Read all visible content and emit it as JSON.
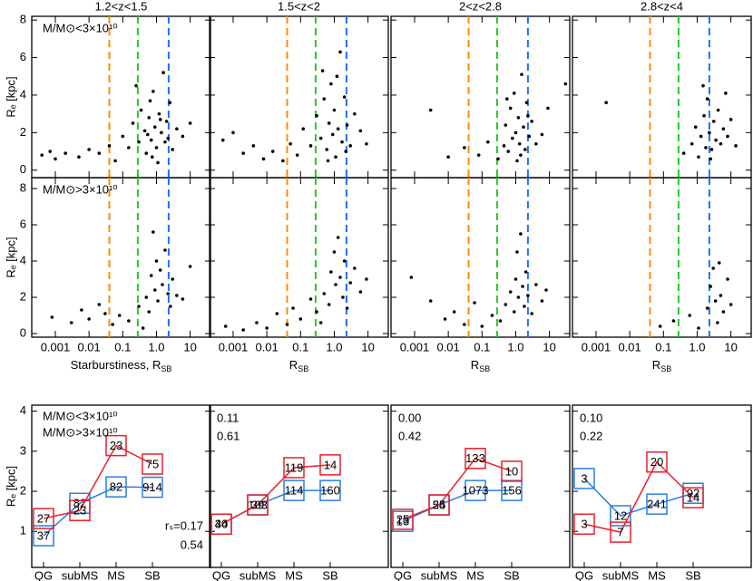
{
  "chart_data": [
    {
      "type": "scatter",
      "title": "1.2<z<1.5",
      "label": "M/M⊙<3×10¹⁰",
      "ylabel": "Rₑ [kpc]",
      "log_x": true,
      "xlim": [
        0.0002,
        40
      ],
      "ylim": [
        -0.4,
        8.2
      ],
      "xticks": [
        0.001,
        0.01,
        0.1,
        1,
        10
      ],
      "yticks": [
        0,
        2,
        4,
        6,
        8
      ],
      "color": "#000000",
      "vlines": [
        {
          "value": 0.04,
          "color": "#ff8c00"
        },
        {
          "value": 0.28,
          "color": "#22cc22"
        },
        {
          "value": 2.3,
          "color": "#1f6fff"
        }
      ],
      "points": [
        [
          0.0004,
          0.8
        ],
        [
          0.0007,
          1.0
        ],
        [
          0.001,
          0.6
        ],
        [
          0.002,
          0.9
        ],
        [
          0.005,
          0.7
        ],
        [
          0.01,
          1.1
        ],
        [
          0.02,
          0.9
        ],
        [
          0.04,
          1.3
        ],
        [
          0.06,
          0.5
        ],
        [
          0.1,
          1.8
        ],
        [
          0.15,
          1.2
        ],
        [
          0.2,
          2.5
        ],
        [
          0.3,
          1.5
        ],
        [
          0.35,
          3.2
        ],
        [
          0.45,
          2.1
        ],
        [
          0.5,
          0.9
        ],
        [
          0.6,
          2.8
        ],
        [
          0.7,
          1.6
        ],
        [
          0.8,
          4.2
        ],
        [
          0.9,
          2.3
        ],
        [
          1.0,
          1.2
        ],
        [
          1.2,
          3.0
        ],
        [
          1.4,
          2.0
        ],
        [
          1.6,
          5.2
        ],
        [
          1.8,
          1.5
        ],
        [
          2.0,
          2.6
        ],
        [
          2.5,
          3.6
        ],
        [
          3,
          1.1
        ],
        [
          4,
          2.2
        ],
        [
          6,
          1.8
        ],
        [
          10,
          2.5
        ],
        [
          0.25,
          4.5
        ],
        [
          1.1,
          0.4
        ],
        [
          0.55,
          1.9
        ],
        [
          0.75,
          0.7
        ],
        [
          1.3,
          2.7
        ],
        [
          0.65,
          3.7
        ],
        [
          2.2,
          1.7
        ]
      ]
    },
    {
      "type": "scatter",
      "title": "1.5<z<2",
      "log_x": true,
      "xlim": [
        0.0002,
        40
      ],
      "ylim": [
        -0.4,
        8.2
      ],
      "xticks": [
        0.001,
        0.01,
        0.1,
        1,
        10
      ],
      "yticks": [
        0,
        2,
        4,
        6,
        8
      ],
      "color": "#000000",
      "vlines": [
        {
          "value": 0.04,
          "color": "#ff8c00"
        },
        {
          "value": 0.28,
          "color": "#22cc22"
        },
        {
          "value": 2.3,
          "color": "#1f6fff"
        }
      ],
      "points": [
        [
          0.0005,
          1.6
        ],
        [
          0.001,
          2.0
        ],
        [
          0.002,
          0.9
        ],
        [
          0.004,
          1.3
        ],
        [
          0.008,
          0.6
        ],
        [
          0.015,
          1.0
        ],
        [
          0.03,
          0.5
        ],
        [
          0.05,
          1.4
        ],
        [
          0.08,
          0.8
        ],
        [
          0.12,
          2.2
        ],
        [
          0.2,
          1.3
        ],
        [
          0.3,
          2.9
        ],
        [
          0.4,
          1.7
        ],
        [
          0.5,
          3.8
        ],
        [
          0.6,
          1.1
        ],
        [
          0.7,
          2.5
        ],
        [
          0.8,
          4.6
        ],
        [
          0.9,
          1.9
        ],
        [
          1.0,
          3.2
        ],
        [
          1.1,
          0.7
        ],
        [
          1.3,
          2.2
        ],
        [
          1.5,
          6.3
        ],
        [
          1.7,
          1.5
        ],
        [
          2.0,
          3.9
        ],
        [
          2.4,
          2.4
        ],
        [
          3,
          1.3
        ],
        [
          4,
          3.0
        ],
        [
          6,
          2.1
        ],
        [
          9,
          1.4
        ],
        [
          0.45,
          5.3
        ],
        [
          1.2,
          5.0
        ],
        [
          0.65,
          0.5
        ],
        [
          2.2,
          1.0
        ]
      ]
    },
    {
      "type": "scatter",
      "title": "2<z<2.8",
      "log_x": true,
      "xlim": [
        0.0002,
        40
      ],
      "ylim": [
        -0.4,
        8.2
      ],
      "xticks": [
        0.001,
        0.01,
        0.1,
        1,
        10
      ],
      "yticks": [
        0,
        2,
        4,
        6,
        8
      ],
      "color": "#000000",
      "vlines": [
        {
          "value": 0.04,
          "color": "#ff8c00"
        },
        {
          "value": 0.28,
          "color": "#22cc22"
        },
        {
          "value": 2.3,
          "color": "#1f6fff"
        }
      ],
      "points": [
        [
          0.003,
          3.2
        ],
        [
          0.01,
          0.7
        ],
        [
          0.03,
          1.2
        ],
        [
          0.08,
          0.8
        ],
        [
          0.15,
          1.5
        ],
        [
          0.3,
          0.6
        ],
        [
          0.45,
          1.3
        ],
        [
          0.5,
          2.4
        ],
        [
          0.6,
          1.0
        ],
        [
          0.7,
          3.3
        ],
        [
          0.8,
          1.7
        ],
        [
          0.9,
          4.1
        ],
        [
          1.0,
          2.0
        ],
        [
          1.1,
          0.5
        ],
        [
          1.2,
          2.8
        ],
        [
          1.3,
          1.4
        ],
        [
          1.5,
          5.1
        ],
        [
          1.7,
          2.3
        ],
        [
          1.9,
          1.1
        ],
        [
          2.1,
          3.6
        ],
        [
          2.5,
          1.8
        ],
        [
          3,
          2.6
        ],
        [
          4,
          1.4
        ],
        [
          6,
          1.9
        ],
        [
          9,
          3.3
        ],
        [
          0.55,
          3.8
        ],
        [
          1.4,
          0.8
        ],
        [
          2.3,
          2.9
        ],
        [
          30,
          4.6
        ]
      ]
    },
    {
      "type": "scatter",
      "title": "2.8<z<4",
      "log_x": true,
      "xlim": [
        0.0002,
        40
      ],
      "ylim": [
        -0.4,
        8.2
      ],
      "xticks": [
        0.001,
        0.01,
        0.1,
        1,
        10
      ],
      "yticks": [
        0,
        2,
        4,
        6,
        8
      ],
      "color": "#000000",
      "vlines": [
        {
          "value": 0.04,
          "color": "#ff8c00"
        },
        {
          "value": 0.28,
          "color": "#22cc22"
        },
        {
          "value": 2.3,
          "color": "#1f6fff"
        }
      ],
      "points": [
        [
          0.002,
          3.6
        ],
        [
          0.4,
          0.9
        ],
        [
          0.7,
          1.4
        ],
        [
          0.9,
          2.3
        ],
        [
          1.1,
          0.7
        ],
        [
          1.3,
          1.8
        ],
        [
          1.6,
          2.9
        ],
        [
          1.8,
          1.2
        ],
        [
          2.0,
          3.8
        ],
        [
          2.3,
          2.0
        ],
        [
          2.7,
          1.1
        ],
        [
          3.1,
          2.6
        ],
        [
          3.6,
          1.6
        ],
        [
          4.2,
          3.2
        ],
        [
          5,
          1.4
        ],
        [
          6,
          2.2
        ],
        [
          7,
          4.1
        ],
        [
          8,
          1.8
        ],
        [
          10,
          2.7
        ],
        [
          14,
          1.3
        ],
        [
          1.5,
          4.5
        ],
        [
          2.5,
          0.6
        ]
      ]
    },
    {
      "type": "scatter",
      "label": "M/M⊙>3×10¹⁰",
      "ylabel": "Rₑ [kpc]",
      "xlabel": "Starburstiness, R",
      "xlabel_sub": "SB",
      "log_x": true,
      "xlim": [
        0.0002,
        40
      ],
      "ylim": [
        -0.2,
        8.6
      ],
      "xticks": [
        0.001,
        0.01,
        0.1,
        {
          "value": 1,
          "label": "1.0"
        },
        10
      ],
      "yticks": [
        0,
        2,
        4,
        6,
        8
      ],
      "color": "#000000",
      "vlines": [
        {
          "value": 0.04,
          "color": "#ff8c00"
        },
        {
          "value": 0.28,
          "color": "#22cc22"
        },
        {
          "value": 2.3,
          "color": "#1f6fff"
        }
      ],
      "points": [
        [
          0.0008,
          0.9
        ],
        [
          0.003,
          0.6
        ],
        [
          0.006,
          1.3
        ],
        [
          0.01,
          0.8
        ],
        [
          0.02,
          1.6
        ],
        [
          0.03,
          1.1
        ],
        [
          0.05,
          0.5
        ],
        [
          0.08,
          1.0
        ],
        [
          0.15,
          0.7
        ],
        [
          0.3,
          1.5
        ],
        [
          0.5,
          2.0
        ],
        [
          0.7,
          3.2
        ],
        [
          0.8,
          5.6
        ],
        [
          0.9,
          2.4
        ],
        [
          1.0,
          4.0
        ],
        [
          1.1,
          1.8
        ],
        [
          1.3,
          3.5
        ],
        [
          1.5,
          2.7
        ],
        [
          1.8,
          4.6
        ],
        [
          2.2,
          2.2
        ],
        [
          2.6,
          1.5
        ],
        [
          3,
          3.0
        ],
        [
          4,
          2.1
        ],
        [
          6,
          1.9
        ],
        [
          10,
          3.7
        ],
        [
          0.6,
          1.2
        ],
        [
          0.4,
          0.3
        ]
      ]
    },
    {
      "type": "scatter",
      "xlabel": "R",
      "xlabel_sub": "SB",
      "log_x": true,
      "xlim": [
        0.0002,
        40
      ],
      "ylim": [
        -0.2,
        8.6
      ],
      "xticks": [
        0.001,
        0.01,
        0.1,
        {
          "value": 1,
          "label": "1.0"
        },
        10
      ],
      "yticks": [
        0,
        2,
        4,
        6,
        8
      ],
      "color": "#000000",
      "vlines": [
        {
          "value": 0.04,
          "color": "#ff8c00"
        },
        {
          "value": 0.28,
          "color": "#22cc22"
        },
        {
          "value": 2.3,
          "color": "#1f6fff"
        }
      ],
      "points": [
        [
          0.0006,
          0.4
        ],
        [
          0.002,
          0.2
        ],
        [
          0.005,
          0.6
        ],
        [
          0.01,
          0.3
        ],
        [
          0.02,
          1.1
        ],
        [
          0.04,
          0.5
        ],
        [
          0.06,
          1.4
        ],
        [
          0.1,
          0.8
        ],
        [
          0.2,
          1.9
        ],
        [
          0.3,
          1.2
        ],
        [
          0.4,
          0.6
        ],
        [
          0.5,
          2.2
        ],
        [
          0.7,
          1.6
        ],
        [
          0.8,
          3.4
        ],
        [
          1.0,
          4.5
        ],
        [
          1.1,
          2.7
        ],
        [
          1.3,
          5.3
        ],
        [
          1.5,
          3.1
        ],
        [
          1.8,
          2.0
        ],
        [
          2.0,
          4.0
        ],
        [
          2.4,
          1.4
        ],
        [
          3,
          2.8
        ],
        [
          4,
          3.6
        ],
        [
          6,
          2.3
        ],
        [
          9,
          3.0
        ]
      ]
    },
    {
      "type": "scatter",
      "xlabel": "R",
      "xlabel_sub": "SB",
      "log_x": true,
      "xlim": [
        0.0002,
        40
      ],
      "ylim": [
        -0.2,
        8.6
      ],
      "xticks": [
        0.001,
        0.01,
        0.1,
        {
          "value": 1,
          "label": "1.0"
        },
        10
      ],
      "yticks": [
        0,
        2,
        4,
        6,
        8
      ],
      "color": "#000000",
      "vlines": [
        {
          "value": 0.04,
          "color": "#ff8c00"
        },
        {
          "value": 0.28,
          "color": "#22cc22"
        },
        {
          "value": 2.3,
          "color": "#1f6fff"
        }
      ],
      "points": [
        [
          0.0008,
          3.1
        ],
        [
          0.003,
          1.8
        ],
        [
          0.008,
          0.8
        ],
        [
          0.015,
          1.2
        ],
        [
          0.03,
          0.5
        ],
        [
          0.06,
          1.7
        ],
        [
          0.1,
          0.4
        ],
        [
          0.2,
          1.0
        ],
        [
          0.35,
          0.7
        ],
        [
          0.5,
          1.6
        ],
        [
          0.7,
          2.3
        ],
        [
          0.9,
          1.2
        ],
        [
          1.0,
          3.0
        ],
        [
          1.1,
          4.5
        ],
        [
          1.2,
          2.0
        ],
        [
          1.4,
          5.5
        ],
        [
          1.6,
          2.6
        ],
        [
          1.8,
          1.5
        ],
        [
          2.0,
          3.4
        ],
        [
          2.3,
          2.1
        ],
        [
          3,
          1.1
        ],
        [
          4,
          2.7
        ],
        [
          6,
          1.8
        ],
        [
          8,
          2.4
        ]
      ]
    },
    {
      "type": "scatter",
      "xlabel": "R",
      "xlabel_sub": "SB",
      "log_x": true,
      "xlim": [
        0.0002,
        40
      ],
      "ylim": [
        -0.2,
        8.6
      ],
      "xticks": [
        0.001,
        0.01,
        0.1,
        {
          "value": 1,
          "label": "1.0"
        },
        10
      ],
      "yticks": [
        0,
        2,
        4,
        6,
        8
      ],
      "color": "#000000",
      "vlines": [
        {
          "value": 0.04,
          "color": "#ff8c00"
        },
        {
          "value": 0.28,
          "color": "#22cc22"
        },
        {
          "value": 2.3,
          "color": "#1f6fff"
        }
      ],
      "points": [
        [
          0.08,
          0.4
        ],
        [
          0.2,
          0.7
        ],
        [
          0.6,
          1.0
        ],
        [
          1.1,
          0.3
        ],
        [
          2.0,
          1.4
        ],
        [
          2.5,
          2.6
        ],
        [
          3,
          3.6
        ],
        [
          3.5,
          1.8
        ],
        [
          4,
          0.6
        ],
        [
          5,
          2.1
        ],
        [
          6,
          1.2
        ],
        [
          8,
          3.0
        ],
        [
          10,
          1.6
        ],
        [
          4.5,
          3.9
        ]
      ]
    },
    {
      "type": "line",
      "ylabel": "Rₑ [kpc]",
      "categories": [
        "QG",
        "subMS",
        "MS",
        "SB"
      ],
      "ylim": [
        0.1,
        4.15
      ],
      "yticks": [
        1,
        2,
        3,
        4
      ],
      "legend": "upper left",
      "stats_corner": "lower right",
      "series": [
        {
          "name": "M/M⊙<3×10¹⁰",
          "color": "#2a7de1",
          "values": [
            0.89,
            1.7,
            2.11,
            2.1
          ],
          "counts": [
            37,
            82,
            82,
            914
          ],
          "stat": "rₛ=0.17"
        },
        {
          "name": "M/M⊙>3×10¹⁰",
          "color": "#e8202a",
          "values": [
            1.32,
            1.52,
            3.14,
            2.68
          ],
          "counts": [
            27,
            23,
            23,
            75
          ],
          "stat": "0.54"
        }
      ]
    },
    {
      "type": "line",
      "categories": [
        "QG",
        "subMS",
        "MS",
        "SB"
      ],
      "ylim": [
        0.1,
        4.15
      ],
      "yticks": [
        1,
        2,
        3,
        4
      ],
      "stats_corner": "upper left",
      "series": [
        {
          "color": "#2a7de1",
          "values": [
            1.18,
            1.66,
            2.02,
            2.02
          ],
          "counts": [
            40,
            103,
            114,
            160
          ],
          "stat": "0.11"
        },
        {
          "color": "#e8202a",
          "values": [
            1.18,
            1.66,
            2.59,
            2.66
          ],
          "counts": [
            34,
            39,
            119,
            14
          ],
          "stat": "0.61"
        }
      ]
    },
    {
      "type": "line",
      "categories": [
        "QG",
        "subMS",
        "MS",
        "SB"
      ],
      "ylim": [
        0.1,
        4.15
      ],
      "yticks": [
        1,
        2,
        3,
        4
      ],
      "stats_corner": "upper left",
      "series": [
        {
          "color": "#2a7de1",
          "values": [
            1.25,
            1.66,
            2.02,
            2.02
          ],
          "counts": [
            13,
            54,
            1073,
            156
          ],
          "stat": "0.00"
        },
        {
          "color": "#e8202a",
          "values": [
            1.3,
            1.66,
            2.82,
            2.5
          ],
          "counts": [
            25,
            25,
            133,
            10
          ],
          "stat": "0.42"
        }
      ]
    },
    {
      "type": "line",
      "categories": [
        "QG",
        "subMS",
        "MS",
        "SB"
      ],
      "ylim": [
        0.1,
        4.15
      ],
      "yticks": [
        1,
        2,
        3,
        4
      ],
      "stats_corner": "upper left",
      "series": [
        {
          "color": "#2a7de1",
          "values": [
            2.32,
            1.39,
            1.68,
            1.95
          ],
          "counts": [
            3,
            12,
            241,
            92
          ],
          "stat": "0.10"
        },
        {
          "color": "#e8202a",
          "values": [
            1.18,
            0.98,
            2.73,
            1.84
          ],
          "counts": [
            3,
            7,
            20,
            14
          ],
          "stat": "0.22"
        }
      ]
    }
  ]
}
